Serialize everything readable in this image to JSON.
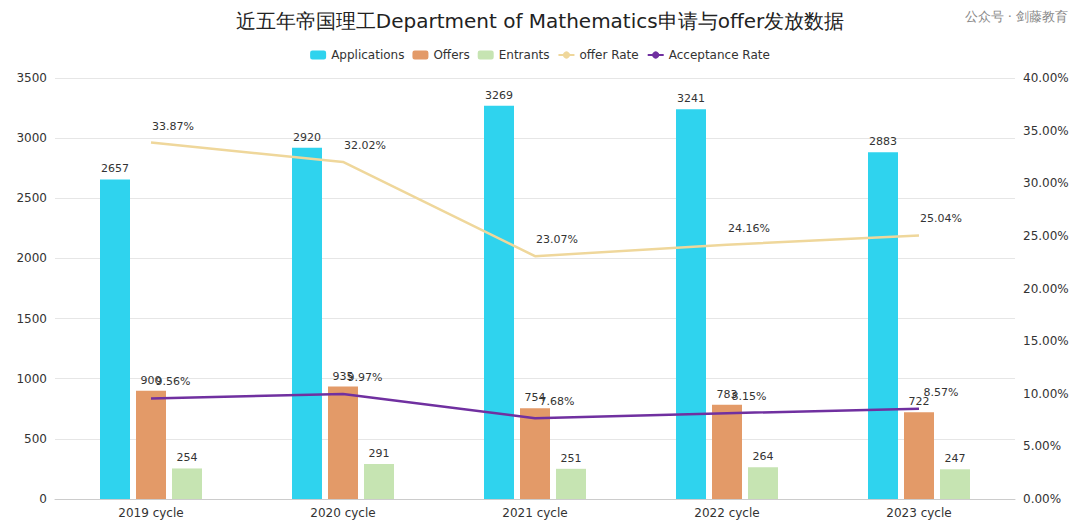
{
  "chart_data": {
    "type": "bar",
    "title": "近五年帝国理工Department of Mathematics申请与offer发放数据",
    "annotations": [
      "公众号 · 剑藤教育"
    ],
    "categories": [
      "2019 cycle",
      "2020 cycle",
      "2021 cycle",
      "2022 cycle",
      "2023 cycle"
    ],
    "series": [
      {
        "name": "Applications",
        "type": "bar",
        "color": "#2fd3ee",
        "values": [
          2657,
          2920,
          3269,
          3241,
          2883
        ]
      },
      {
        "name": "Offers",
        "type": "bar",
        "color": "#e39a68",
        "values": [
          900,
          935,
          754,
          783,
          722
        ]
      },
      {
        "name": "Entrants",
        "type": "bar",
        "color": "#c6e4b2",
        "values": [
          254,
          291,
          251,
          264,
          247
        ]
      },
      {
        "name": "offer Rate",
        "type": "line",
        "color": "#efd79b",
        "axis": "y2",
        "marker": "none",
        "values": [
          33.87,
          32.02,
          23.07,
          24.16,
          25.04
        ],
        "value_labels": [
          "33.87%",
          "32.02%",
          "23.07%",
          "24.16%",
          "25.04%"
        ]
      },
      {
        "name": "Acceptance Rate",
        "type": "line",
        "color": "#7030a0",
        "axis": "y2",
        "marker": "none",
        "values": [
          9.56,
          9.97,
          7.68,
          8.15,
          8.57
        ],
        "value_labels": [
          "9.56%",
          "9.97%",
          "7.68%",
          "8.15%",
          "8.57%"
        ]
      }
    ],
    "ylim": [
      0,
      3500
    ],
    "yticks": [
      0,
      500,
      1000,
      1500,
      2000,
      2500,
      3000,
      3500
    ],
    "y2lim": [
      0,
      40
    ],
    "y2ticks": [
      {
        "value": 0,
        "label": "0.00%"
      },
      {
        "value": 5,
        "label": "5.00%"
      },
      {
        "value": 10,
        "label": "10.00%"
      },
      {
        "value": 15,
        "label": "15.00%"
      },
      {
        "value": 20,
        "label": "20.00%"
      },
      {
        "value": 25,
        "label": "25.00%"
      },
      {
        "value": 30,
        "label": "30.00%"
      },
      {
        "value": 35,
        "label": "35.00%"
      },
      {
        "value": 40,
        "label": "40.00%"
      }
    ],
    "grid": true,
    "legend": "top",
    "data_labels": true
  }
}
